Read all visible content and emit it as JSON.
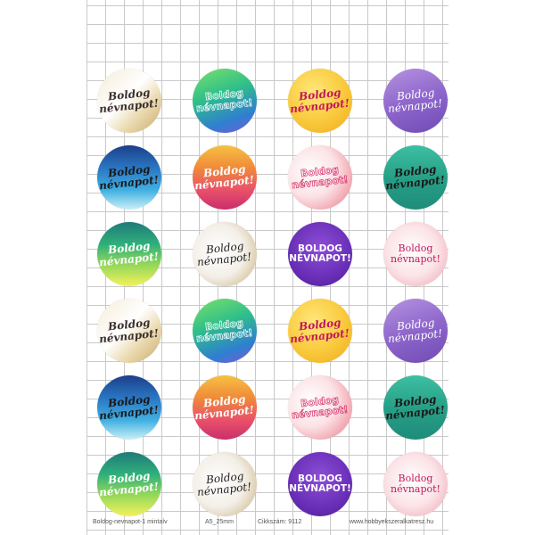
{
  "footer": {
    "name": "Boldog-nevnapot-1 mintaív",
    "size": "A5_25mm",
    "code": "Cikkszám: 9112",
    "website": "www.hobbyekszeralkatresz.hu"
  },
  "badges": [
    {
      "line1": "Boldog",
      "line2": "névnapot!",
      "style": "italic",
      "bg": "linear-gradient(135deg, #f5ecd6 0%, #ffffff 45%, #e9d8ad 70%, #c9a96b 100%)",
      "color": "#3b2f2f"
    },
    {
      "line1": "Boldog",
      "line2": "névnapot!",
      "style": "outline",
      "bg": "linear-gradient(160deg, #7be06a 0%, #2fbf8a 40%, #2f7fd0 75%, #7a5bd8 100%)",
      "color": "#ffffff"
    },
    {
      "line1": "Boldog",
      "line2": "névnapot!",
      "style": "italic",
      "bg": "radial-gradient(circle at 40% 35%, #ffe77a 0%, #f9c93b 55%, #f0a820 100%)",
      "color": "#c2185b"
    },
    {
      "line1": "Boldog",
      "line2": "névnapot!",
      "style": "script",
      "bg": "linear-gradient(160deg, #b693e0 0%, #8e66cc 50%, #6f4bb3 100%)",
      "color": "#ffffff"
    },
    {
      "line1": "Boldog",
      "line2": "névnapot!",
      "style": "italic",
      "bg": "linear-gradient(180deg, #1c3f8a 0%, #2a76c2 35%, #41b0e3 70%, #c9f0f6 100%)",
      "color": "#1a1a1a"
    },
    {
      "line1": "Boldog",
      "line2": "névnapot!",
      "style": "italic",
      "bg": "linear-gradient(180deg, #f6c142 0%, #f08a3a 35%, #e9506a 70%, #c92f6b 100%)",
      "color": "#ffffff"
    },
    {
      "line1": "Boldog",
      "line2": "névnapot!",
      "style": "outline",
      "bg": "radial-gradient(circle at 35% 40%, #ffffff 0%, #fbe3e6 45%, #f2a7b1 75%, #e9c38a 100%)",
      "color": "#d6336c"
    },
    {
      "line1": "Boldog",
      "line2": "névnapot!",
      "style": "italic",
      "bg": "linear-gradient(180deg, #3dbfa2 0%, #27a087 50%, #1e8c7a 100%)",
      "color": "#1a1a1a"
    },
    {
      "line1": "Boldog",
      "line2": "névnapot!",
      "style": "italic",
      "bg": "linear-gradient(180deg, #1f7a7a 0%, #2fb07a 35%, #8fd65a 65%, #f4f25a 100%)",
      "color": "#ffffff"
    },
    {
      "line1": "Boldog",
      "line2": "névnapot!",
      "style": "script",
      "bg": "radial-gradient(circle at 40% 45%, #ffffff 0%, #f3efe8 50%, #d9c7a4 80%, #bfae8c 100%)",
      "color": "#222222"
    },
    {
      "line1": "BOLDOG",
      "line2": "NÉVNAPOT!",
      "style": "caps",
      "bg": "radial-gradient(circle at 50% 40%, #8d4fd6 0%, #6a2fb8 60%, #4b1d8f 100%)",
      "color": "#ffffff"
    },
    {
      "line1": "Boldog",
      "line2": "névnapot!",
      "style": "plain",
      "bg": "radial-gradient(circle at 45% 45%, #ffffff 0%, #fbe4e8 50%, #f3bcc6 80%, #ec9fae 100%)",
      "color": "#c2185b"
    },
    {
      "line1": "Boldog",
      "line2": "névnapot!",
      "style": "italic",
      "bg": "linear-gradient(135deg, #f5ecd6 0%, #ffffff 45%, #e9d8ad 70%, #c9a96b 100%)",
      "color": "#3b2f2f"
    },
    {
      "line1": "Boldog",
      "line2": "névnapot!",
      "style": "outline",
      "bg": "linear-gradient(160deg, #7be06a 0%, #2fbf8a 40%, #2f7fd0 75%, #7a5bd8 100%)",
      "color": "#ffffff"
    },
    {
      "line1": "Boldog",
      "line2": "névnapot!",
      "style": "italic",
      "bg": "radial-gradient(circle at 40% 35%, #ffe77a 0%, #f9c93b 55%, #f0a820 100%)",
      "color": "#c2185b"
    },
    {
      "line1": "Boldog",
      "line2": "névnapot!",
      "style": "script",
      "bg": "linear-gradient(160deg, #b693e0 0%, #8e66cc 50%, #6f4bb3 100%)",
      "color": "#ffffff"
    },
    {
      "line1": "Boldog",
      "line2": "névnapot!",
      "style": "italic",
      "bg": "linear-gradient(180deg, #1c3f8a 0%, #2a76c2 35%, #41b0e3 70%, #c9f0f6 100%)",
      "color": "#1a1a1a"
    },
    {
      "line1": "Boldog",
      "line2": "névnapot!",
      "style": "italic",
      "bg": "linear-gradient(180deg, #f6c142 0%, #f08a3a 35%, #e9506a 70%, #c92f6b 100%)",
      "color": "#ffffff"
    },
    {
      "line1": "Boldog",
      "line2": "névnapot!",
      "style": "outline",
      "bg": "radial-gradient(circle at 35% 40%, #ffffff 0%, #fbe3e6 45%, #f2a7b1 75%, #e9c38a 100%)",
      "color": "#d6336c"
    },
    {
      "line1": "Boldog",
      "line2": "névnapot!",
      "style": "italic",
      "bg": "linear-gradient(180deg, #3dbfa2 0%, #27a087 50%, #1e8c7a 100%)",
      "color": "#1a1a1a"
    },
    {
      "line1": "Boldog",
      "line2": "névnapot!",
      "style": "italic",
      "bg": "linear-gradient(180deg, #1f7a7a 0%, #2fb07a 35%, #8fd65a 65%, #f4f25a 100%)",
      "color": "#ffffff"
    },
    {
      "line1": "Boldog",
      "line2": "névnapot!",
      "style": "script",
      "bg": "radial-gradient(circle at 40% 45%, #ffffff 0%, #f3efe8 50%, #d9c7a4 80%, #bfae8c 100%)",
      "color": "#222222"
    },
    {
      "line1": "BOLDOG",
      "line2": "NÉVNAPOT!",
      "style": "caps",
      "bg": "radial-gradient(circle at 50% 40%, #8d4fd6 0%, #6a2fb8 60%, #4b1d8f 100%)",
      "color": "#ffffff"
    },
    {
      "line1": "Boldog",
      "line2": "névnapot!",
      "style": "plain",
      "bg": "radial-gradient(circle at 45% 45%, #ffffff 0%, #fbe4e8 50%, #f3bcc6 80%, #ec9fae 100%)",
      "color": "#c2185b"
    }
  ]
}
